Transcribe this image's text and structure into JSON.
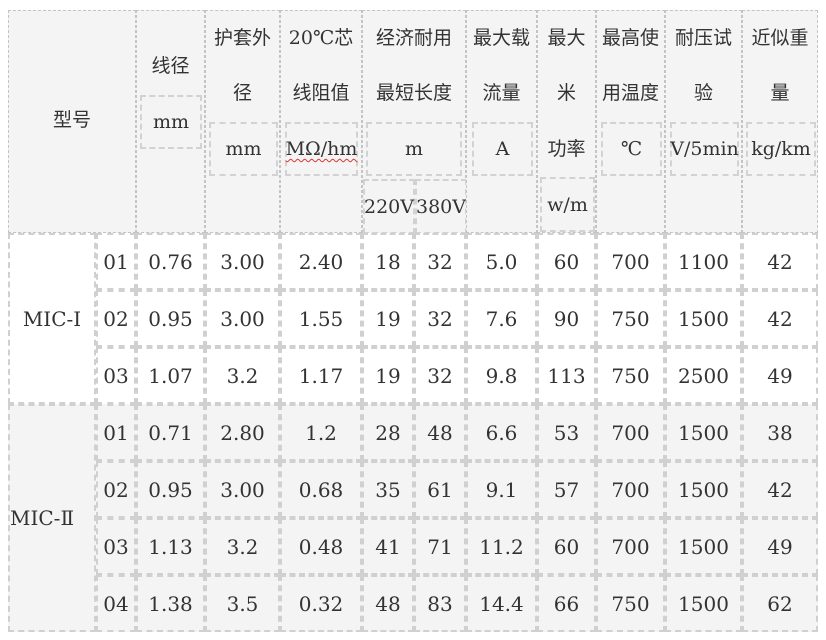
{
  "header": {
    "model": "型号",
    "diameter": [
      "线径",
      "mm"
    ],
    "sheath": [
      "护套外",
      "径",
      "mm"
    ],
    "resistance": [
      "20℃芯",
      "线阻值",
      "MΩ/hm"
    ],
    "length": [
      "经济耐用",
      "最短长度",
      "m",
      "220V",
      "380V"
    ],
    "current": [
      "最大载",
      "流量",
      "A"
    ],
    "power": [
      "最大",
      "米",
      "功率",
      "w/m"
    ],
    "temperature": [
      "最高使",
      "用温度",
      "℃"
    ],
    "voltage": [
      "耐压试",
      "验",
      "V/5min"
    ],
    "weight": [
      "近似重",
      "量",
      "kg/km"
    ]
  },
  "groups": [
    {
      "model": "MIC-Ⅰ",
      "rows": [
        [
          "01",
          "0.76",
          "3.00",
          "2.40",
          "18",
          "32",
          "5.0",
          "60",
          "700",
          "1100",
          "42"
        ],
        [
          "02",
          "0.95",
          "3.00",
          "1.55",
          "19",
          "32",
          "7.6",
          "90",
          "750",
          "1500",
          "42"
        ],
        [
          "03",
          "1.07",
          "3.2",
          "1.17",
          "19",
          "32",
          "9.8",
          "113",
          "750",
          "2500",
          "49"
        ]
      ]
    },
    {
      "model": "MIC-Ⅱ",
      "rows": [
        [
          "01",
          "0.71",
          "2.80",
          "1.2",
          "28",
          "48",
          "6.6",
          "53",
          "700",
          "1500",
          "38"
        ],
        [
          "02",
          "0.95",
          "3.00",
          "0.68",
          "35",
          "61",
          "9.1",
          "57",
          "700",
          "1500",
          "42"
        ],
        [
          "03",
          "1.13",
          "3.2",
          "0.48",
          "41",
          "71",
          "11.2",
          "60",
          "700",
          "1500",
          "49"
        ],
        [
          "04",
          "1.38",
          "3.5",
          "0.32",
          "48",
          "83",
          "14.4",
          "66",
          "750",
          "1500",
          "62"
        ]
      ]
    }
  ]
}
